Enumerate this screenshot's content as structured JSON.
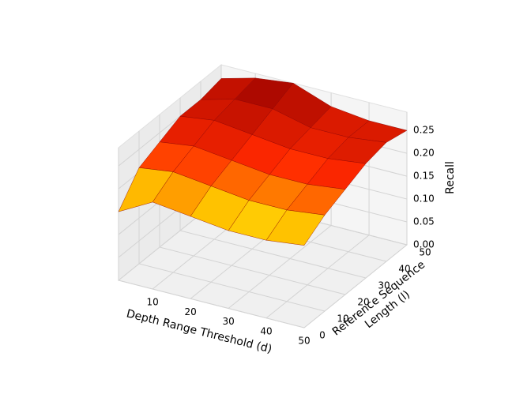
{
  "chart_data": {
    "type": "surface",
    "x_label": "Depth Range Threshold (d)",
    "y_label": [
      "Reference Sequence",
      "Length (l)"
    ],
    "z_label": "Recall",
    "x": [
      1,
      10,
      20,
      30,
      40,
      50
    ],
    "y": [
      0,
      10,
      20,
      30,
      40,
      50
    ],
    "z": [
      [
        0.15,
        0.21,
        0.23,
        0.25,
        0.25,
        0.26
      ],
      [
        0.19,
        0.22,
        0.24,
        0.26,
        0.27,
        0.28
      ],
      [
        0.18,
        0.21,
        0.23,
        0.25,
        0.27,
        0.29
      ],
      [
        0.17,
        0.2,
        0.22,
        0.24,
        0.25,
        0.26
      ],
      [
        0.17,
        0.2,
        0.22,
        0.24,
        0.25,
        0.25
      ],
      [
        0.18,
        0.21,
        0.23,
        0.25,
        0.26,
        0.25
      ]
    ],
    "xlim": [
      1,
      50
    ],
    "xticks": [
      10,
      20,
      30,
      40,
      50
    ],
    "ylim": [
      0,
      50
    ],
    "yticks": [
      0,
      10,
      20,
      30,
      40,
      50
    ],
    "zlim": [
      0,
      0.29
    ],
    "zticks": [
      {
        "value": 0,
        "label": "0.00"
      },
      0.05,
      {
        "value": 0.1,
        "label": "0.10"
      },
      0.15,
      {
        "value": 0.2,
        "label": "0.20"
      },
      0.25
    ],
    "colormap": "hot",
    "grid": true
  }
}
